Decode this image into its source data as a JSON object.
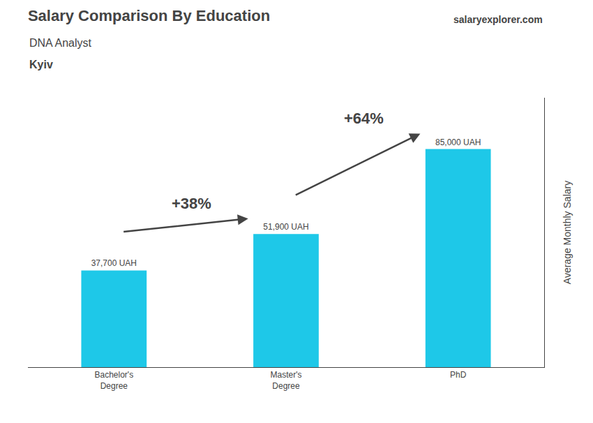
{
  "chart_data": {
    "type": "bar",
    "title": "Salary Comparison By Education",
    "subtitle": [
      "DNA Analyst",
      "Kyiv"
    ],
    "annotations": [
      "salaryexplorer.com"
    ],
    "arrow_labels": [
      "+38%",
      "+64%"
    ],
    "ylabel": "Average Monthly Salary",
    "categories": [
      "Bachelor's\nDegree",
      "Master's\nDegree",
      "PhD"
    ],
    "values": [
      37700,
      51900,
      85000
    ],
    "value_labels": [
      "37,700 UAH",
      "51,900 UAH",
      "85,000 UAH"
    ],
    "data_labels": true,
    "color": "#1EC8E8",
    "ylim": [
      0,
      105000
    ],
    "yticks": [],
    "tick_labels": "x",
    "grid": false
  }
}
